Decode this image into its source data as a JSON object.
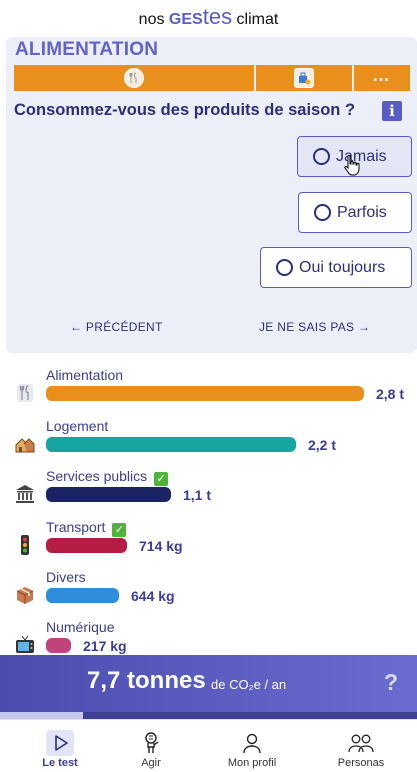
{
  "brand": {
    "part1": "nos ",
    "part2": "GES",
    "part3": "tes",
    "part4": " climat"
  },
  "question_card": {
    "category": "ALIMENTATION",
    "more_label": "…",
    "question": "Consommez-vous des produits de saison ?",
    "info_label": "i",
    "options": [
      {
        "label": "Jamais",
        "hovered": true
      },
      {
        "label": "Parfois",
        "hovered": false
      },
      {
        "label": "Oui toujours",
        "hovered": false
      }
    ],
    "prev_label": "← PRÉCÉDENT",
    "skip_label": "JE NE SAIS PAS →",
    "colors": {
      "accent": "#e88f1c",
      "primary": "#5a5cc6",
      "text": "#2c2f7a"
    }
  },
  "categories": [
    {
      "name": "Alimentation",
      "value": "2,8 t",
      "tonnes": 2.8,
      "color": "#e88f1c",
      "icon": "fork-knife-icon",
      "done": false
    },
    {
      "name": "Logement",
      "value": "2,2 t",
      "tonnes": 2.2,
      "color": "#16a5a0",
      "icon": "houses-icon",
      "done": false
    },
    {
      "name": "Services publics",
      "value": "1,1 t",
      "tonnes": 1.1,
      "color": "#1b2462",
      "icon": "classical-building-icon",
      "done": true
    },
    {
      "name": "Transport",
      "value": "714 kg",
      "tonnes": 0.714,
      "color": "#b51d45",
      "icon": "traffic-light-icon",
      "done": true
    },
    {
      "name": "Divers",
      "value": "644 kg",
      "tonnes": 0.644,
      "color": "#2f8ddb",
      "icon": "package-icon",
      "done": false
    },
    {
      "name": "Numérique",
      "value": "217 kg",
      "tonnes": 0.217,
      "color": "#c0447a",
      "icon": "television-icon",
      "done": false
    }
  ],
  "total": {
    "amount": "7,7 tonnes",
    "unit": "de CO₂e / an",
    "help": "?",
    "progress": 0.2
  },
  "bottom_nav": [
    {
      "label": "Le test",
      "icon": "play-icon",
      "active": true
    },
    {
      "label": "Agir",
      "icon": "person-pointing-icon",
      "active": false
    },
    {
      "label": "Mon profil",
      "icon": "user-icon",
      "active": false
    },
    {
      "label": "Personas",
      "icon": "users-icon",
      "active": false
    }
  ]
}
